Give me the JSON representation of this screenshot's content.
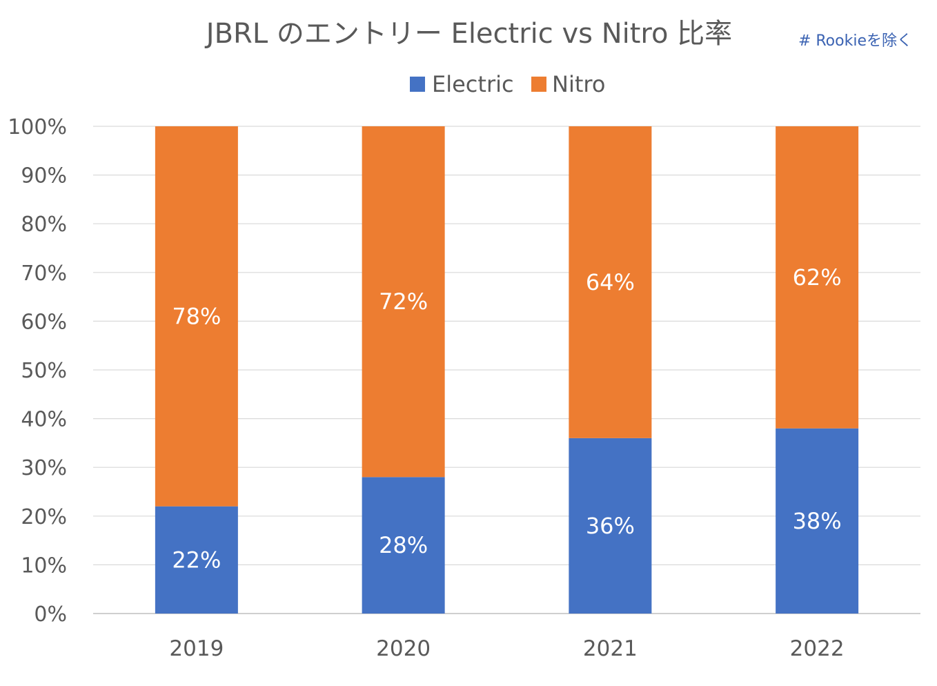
{
  "chart_data": {
    "type": "bar",
    "stacked": true,
    "title": "JBRL のエントリー Electric vs Nitro 比率",
    "annotation": "# Rookieを除く",
    "categories": [
      "2019",
      "2020",
      "2021",
      "2022"
    ],
    "series": [
      {
        "name": "Electric",
        "color": "#4472c4",
        "values": [
          22,
          28,
          36,
          38
        ],
        "labels": [
          "22%",
          "28%",
          "36%",
          "38%"
        ]
      },
      {
        "name": "Nitro",
        "color": "#ed7d31",
        "values": [
          78,
          72,
          64,
          62
        ],
        "labels": [
          "78%",
          "72%",
          "64%",
          "62%"
        ]
      }
    ],
    "ylim": [
      0,
      100
    ],
    "yticks": [
      "0%",
      "10%",
      "20%",
      "30%",
      "40%",
      "50%",
      "60%",
      "70%",
      "80%",
      "90%",
      "100%"
    ],
    "xlabel": "",
    "ylabel": "",
    "grid": true,
    "legend": "top-center"
  },
  "colors": {
    "grid": "#d9d9d9",
    "axis": "#bfbfbf"
  }
}
